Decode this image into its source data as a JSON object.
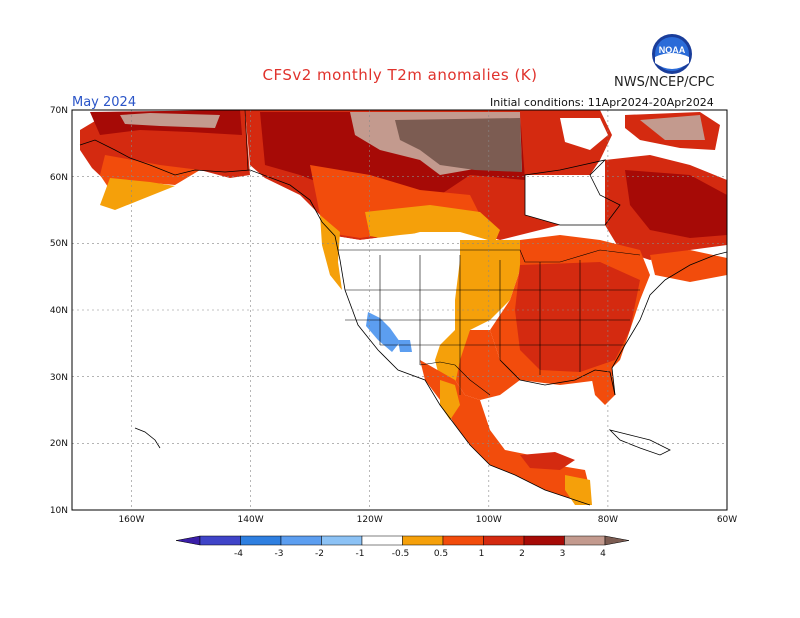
{
  "header": {
    "title": "CFSv2 monthly T2m anomalies (K)",
    "organization": "NWS/NCEP/CPC",
    "logo_text": "NOAA",
    "month": "May 2024",
    "initial_conditions": "Initial conditions: 11Apr2024-20Apr2024"
  },
  "map": {
    "lat_ticks": [
      "70N",
      "60N",
      "50N",
      "40N",
      "30N",
      "20N",
      "10N"
    ],
    "lon_ticks": [
      "160W",
      "140W",
      "120W",
      "100W",
      "80W",
      "60W"
    ]
  },
  "legend": {
    "labels": [
      "-4",
      "-3",
      "-2",
      "-1",
      "-0.5",
      "0.5",
      "1",
      "2",
      "3",
      "4"
    ],
    "colors": [
      "#3a1ea8",
      "#3f44c8",
      "#2e7fe0",
      "#5c9ef0",
      "#8cc2f5",
      "#ffffff",
      "#f5a00a",
      "#f24c0c",
      "#d42a10",
      "#a60a06",
      "#c39a8e",
      "#7c5c52"
    ]
  }
}
